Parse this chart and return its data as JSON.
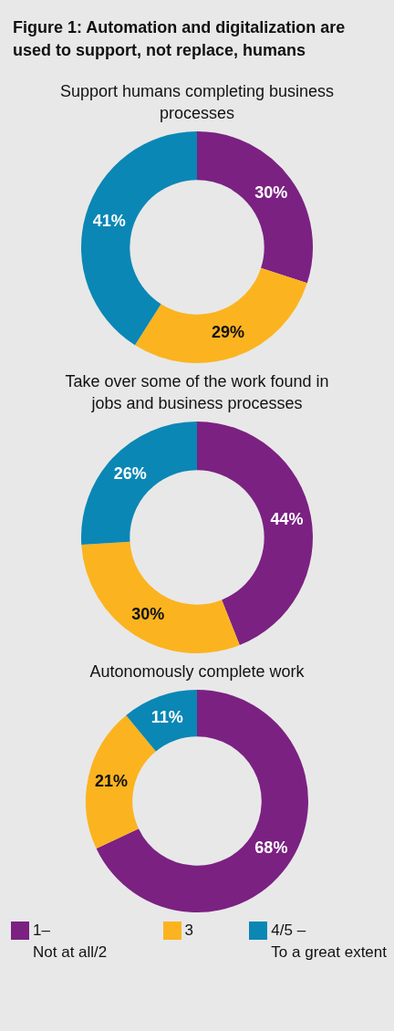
{
  "chart_data": [
    {
      "type": "donut",
      "title": "Figure 1: Automation and digitalization are used to support, not replace, humans",
      "subtitle": "Support humans completing business processes",
      "values": [
        30,
        29,
        41
      ],
      "colors": [
        "#7b2182",
        "#fbb41f",
        "#0a87b5"
      ],
      "value_labels": [
        "30%",
        "29%",
        "41%"
      ],
      "legend": false
    },
    {
      "type": "donut",
      "title": "Take over some of the work found in jobs and business processes",
      "values": [
        44,
        30,
        26
      ],
      "colors": [
        "#7b2182",
        "#fbb41f",
        "#0a87b5"
      ],
      "value_labels": [
        "44%",
        "30%",
        "26%"
      ],
      "legend": false
    },
    {
      "type": "donut",
      "title": "Autonomously complete work",
      "categories": [
        "1–\nNot at all/2",
        "3",
        "4/5 –\nTo a great extent"
      ],
      "values": [
        68,
        21,
        11
      ],
      "colors": [
        "#7b2182",
        "#fbb41f",
        "#0a87b5"
      ],
      "value_labels": [
        "68%",
        "21%",
        "11%"
      ],
      "legend": "bottom"
    }
  ]
}
